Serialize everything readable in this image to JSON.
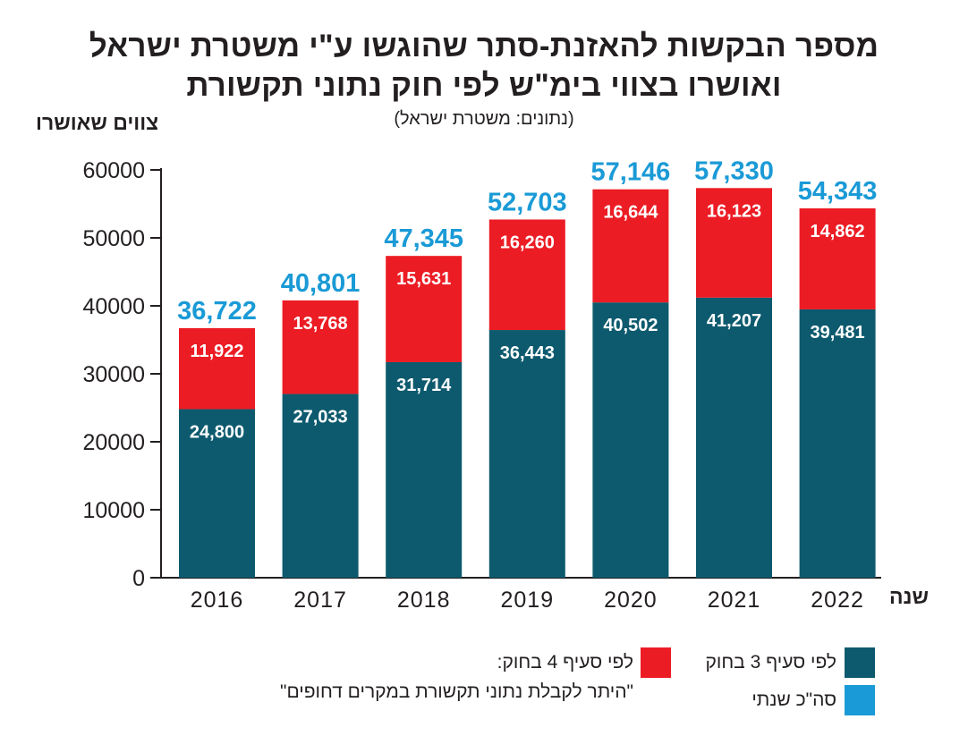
{
  "title_line1": "מספר הבקשות להאזנת-סתר שהוגשו ע\"י משטרת ישראל",
  "title_line2": "ואושרו בצווי בימ\"ש לפי חוק נתוני תקשורת",
  "subtitle": "(נתונים: משטרת ישראל)",
  "legend": {
    "section3": "לפי סעיף 3 בחוק",
    "section4_line1": "לפי סעיף 4 בחוק:",
    "section4_line2": "\"היתר לקבלת נתוני תקשורת במקרים דחופים\"",
    "total": "סה\"כ שנתי"
  },
  "colors": {
    "section3": "#0d5a6e",
    "section4": "#ec1c24",
    "total": "#1a9ad6",
    "axis": "#231f20"
  },
  "chart_data": {
    "type": "bar",
    "stacked": true,
    "ylabel": "צווים שאושרו",
    "xlabel": "שנה",
    "ylim": [
      0,
      60000
    ],
    "yticks": [
      "0",
      "10000",
      "20000",
      "30000",
      "40000",
      "50000",
      "60000"
    ],
    "categories": [
      "2016",
      "2017",
      "2018",
      "2019",
      "2020",
      "2021",
      "2022"
    ],
    "series": [
      {
        "name": "לפי סעיף 3 בחוק",
        "values": [
          24800,
          27033,
          31714,
          36443,
          40502,
          41207,
          39481
        ],
        "labels": [
          "24,800",
          "27,033",
          "31,714",
          "36,443",
          "40,502",
          "41,207",
          "39,481"
        ]
      },
      {
        "name": "לפי סעיף 4 בחוק:",
        "values": [
          11922,
          13768,
          15631,
          16260,
          16644,
          16123,
          14862
        ],
        "labels": [
          "11,922",
          "13,768",
          "15,631",
          "16,260",
          "16,644",
          "16,123",
          "14,862"
        ]
      }
    ],
    "totals": [
      36722,
      40801,
      47345,
      52703,
      57146,
      57330,
      54343
    ],
    "total_labels": [
      "36,722",
      "40,801",
      "47,345",
      "52,703",
      "57,146",
      "57,330",
      "54,343"
    ],
    "legend_position": "bottom",
    "grid": false
  }
}
